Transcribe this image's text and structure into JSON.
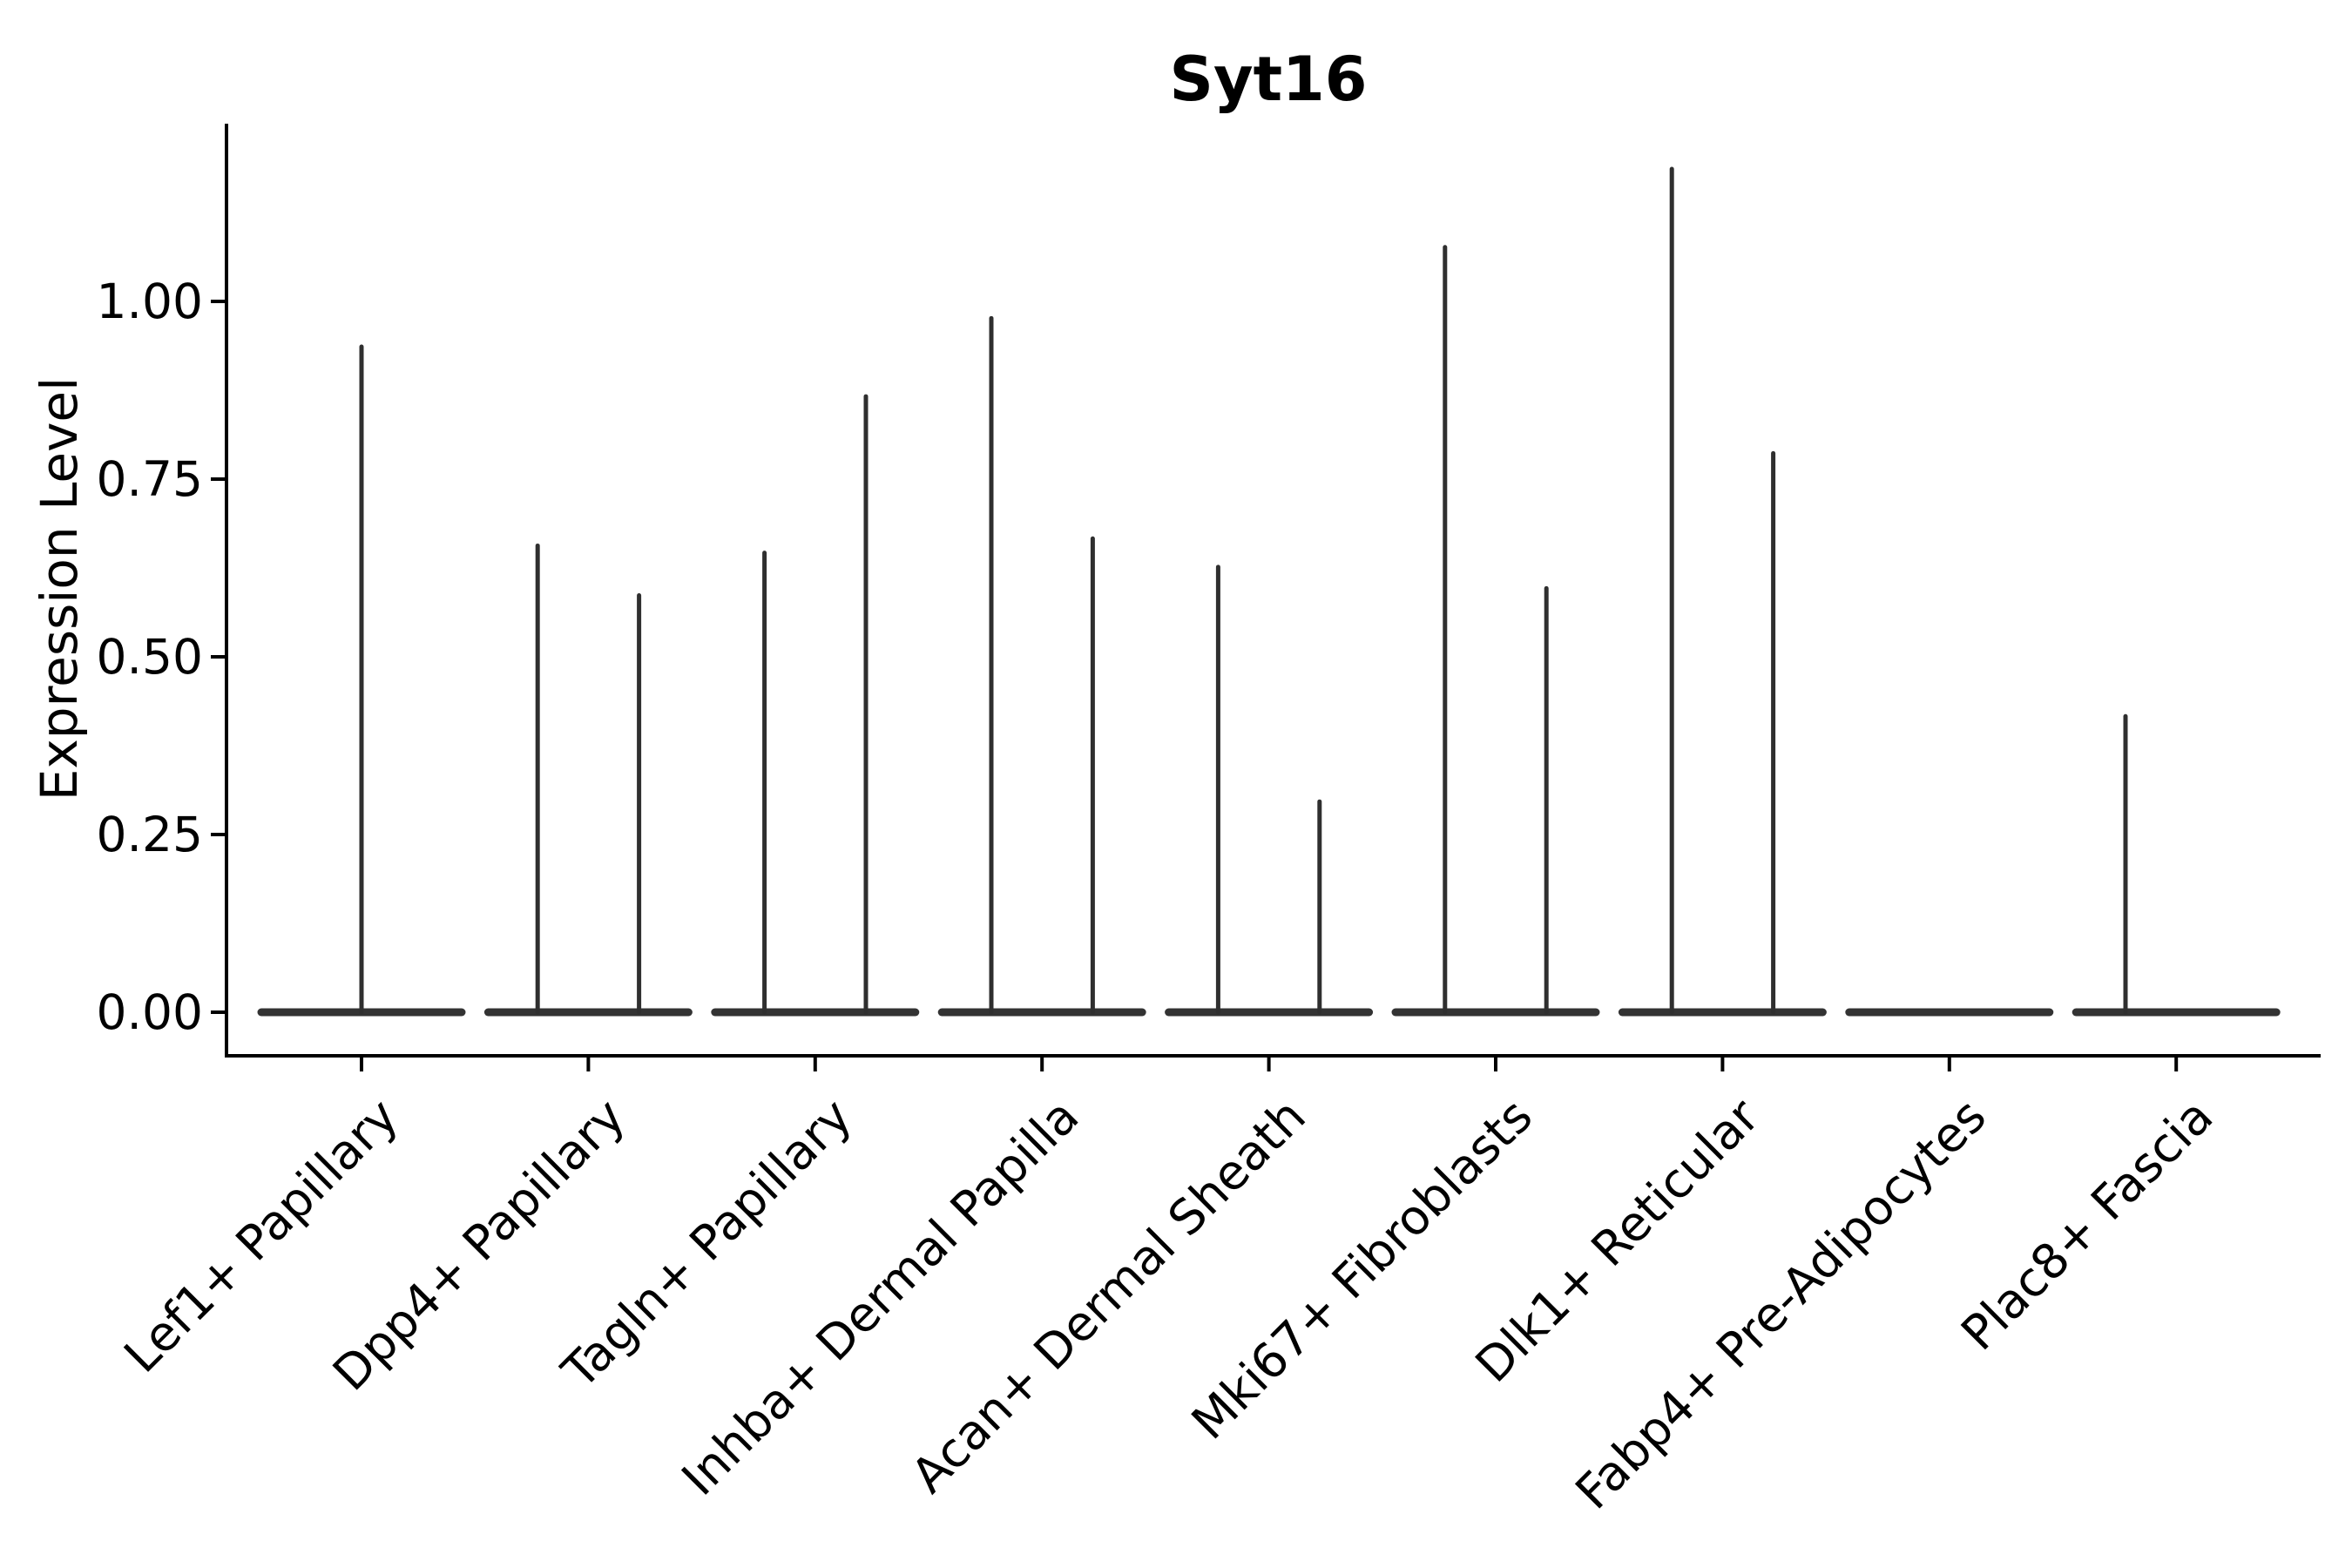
{
  "title": "Syt16",
  "colors": {
    "background": "#ffffff",
    "axis": "#000000",
    "text": "#000000",
    "violin_stroke": "#2f2f2f",
    "violin_base": "#333333"
  },
  "chart_data": {
    "type": "violin",
    "title": "Syt16",
    "xlabel": "",
    "ylabel": "Expression Level",
    "ylim": [
      -0.06,
      1.25
    ],
    "yticks": [
      0.0,
      0.25,
      0.5,
      0.75,
      1.0
    ],
    "ytick_labels": [
      "0.00",
      "0.25",
      "0.50",
      "0.75",
      "1.00"
    ],
    "grid": false,
    "legend": false,
    "x_tick_angle": 45,
    "categories": [
      "Lef1+ Papillary",
      "Dpp4+ Papillary",
      "Tagln+ Papillary",
      "Inhba+ Dermal Papilla",
      "Acan+ Dermal Sheath",
      "Mki67+ Fibroblasts",
      "Dlk1+ Reticular",
      "Fabp4+ Pre-Adipocytes",
      "Plac8+ Fascia"
    ],
    "series": [
      {
        "category": "Lef1+ Papillary",
        "violins": [
          {
            "pos": "center",
            "max": 0.94
          }
        ]
      },
      {
        "category": "Dpp4+ Papillary",
        "violins": [
          {
            "pos": "left",
            "max": 0.66
          },
          {
            "pos": "right",
            "max": 0.59
          }
        ]
      },
      {
        "category": "Tagln+ Papillary",
        "violins": [
          {
            "pos": "left",
            "max": 0.65
          },
          {
            "pos": "right",
            "max": 0.87
          }
        ]
      },
      {
        "category": "Inhba+ Dermal Papilla",
        "violins": [
          {
            "pos": "left",
            "max": 0.98
          },
          {
            "pos": "right",
            "max": 0.67
          }
        ]
      },
      {
        "category": "Acan+ Dermal Sheath",
        "violins": [
          {
            "pos": "left",
            "max": 0.63
          },
          {
            "pos": "right",
            "max": 0.3
          }
        ]
      },
      {
        "category": "Mki67+ Fibroblasts",
        "violins": [
          {
            "pos": "left",
            "max": 1.08
          },
          {
            "pos": "right",
            "max": 0.6
          }
        ]
      },
      {
        "category": "Dlk1+ Reticular",
        "violins": [
          {
            "pos": "left",
            "max": 1.19
          },
          {
            "pos": "right",
            "max": 0.79
          }
        ]
      },
      {
        "category": "Fabp4+ Pre-Adipocytes",
        "violins": [
          {
            "pos": "left",
            "max": 0.0
          },
          {
            "pos": "right",
            "max": 0.0
          }
        ]
      },
      {
        "category": "Plac8+ Fascia",
        "violins": [
          {
            "pos": "left",
            "max": 0.42
          },
          {
            "pos": "right",
            "max": 0.0
          }
        ]
      }
    ]
  }
}
